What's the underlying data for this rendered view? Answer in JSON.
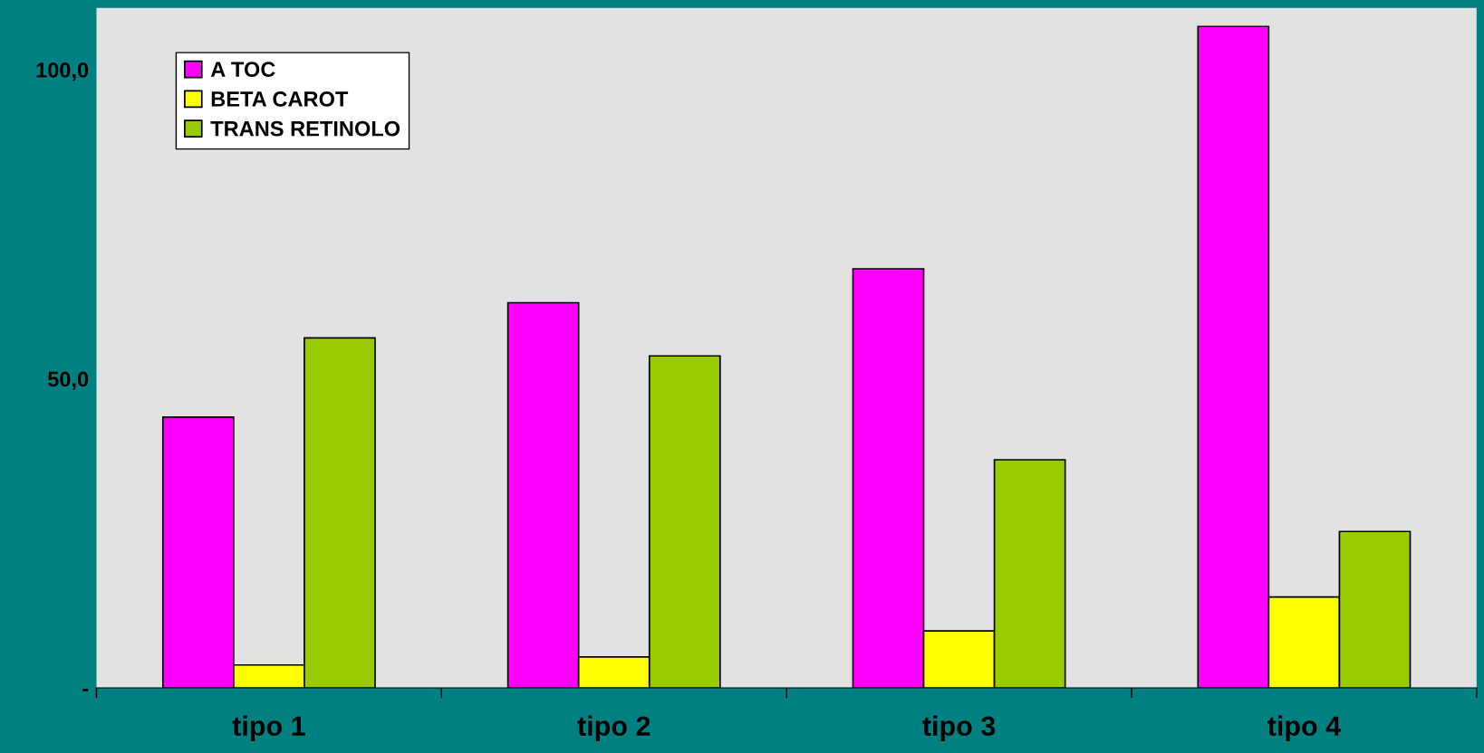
{
  "chart_data": {
    "type": "bar",
    "categories": [
      "tipo 1",
      "tipo 2",
      "tipo 3",
      "tipo 4"
    ],
    "series": [
      {
        "name": "A TOC",
        "color": "#ff00ff",
        "values": [
          43.8,
          62.3,
          67.8,
          107.0
        ]
      },
      {
        "name": "BETA CAROT",
        "color": "#ffff00",
        "values": [
          3.7,
          5.0,
          9.2,
          14.7
        ]
      },
      {
        "name": "TRANS RETINOLO",
        "color": "#99cc00",
        "values": [
          56.6,
          53.7,
          36.9,
          25.3
        ]
      }
    ],
    "ylim": [
      0,
      110
    ],
    "yticks": [
      {
        "value": 0,
        "label": "-"
      },
      {
        "value": 50,
        "label": "50,0"
      },
      {
        "value": 100,
        "label": "100,0"
      }
    ],
    "grid": false,
    "legend": "top left"
  }
}
